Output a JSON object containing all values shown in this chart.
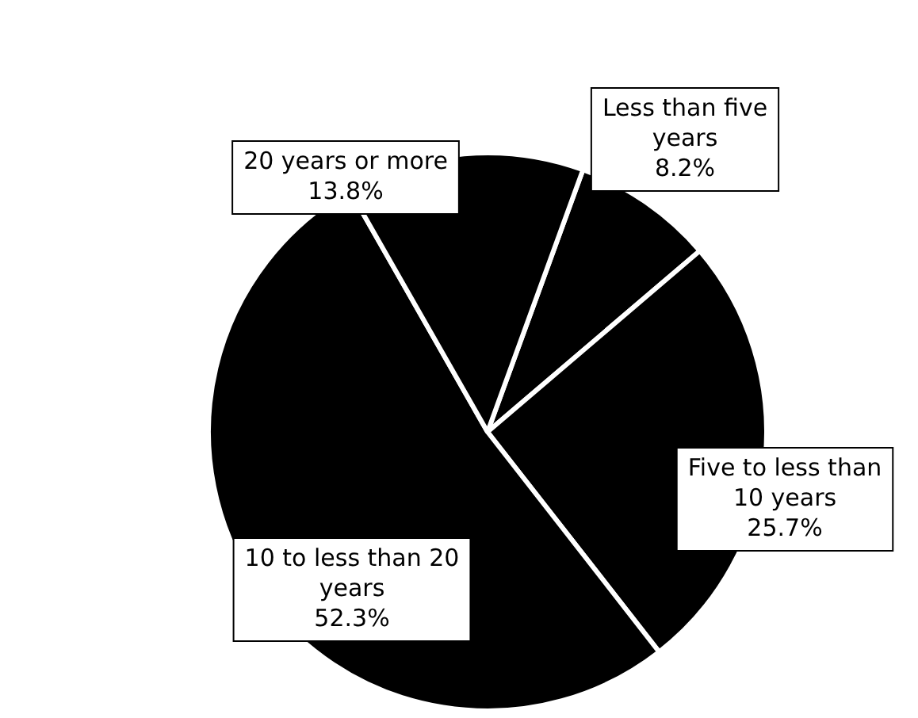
{
  "chart_data": {
    "type": "pie",
    "categories": [
      "Less than five years",
      "Five to less than 10 years",
      "10 to less than 20 years",
      "20 years or more"
    ],
    "values": [
      8.2,
      25.7,
      52.3,
      13.8
    ],
    "colors": [
      "#000000",
      "#000000",
      "#000000",
      "#000000"
    ],
    "value_labels": [
      "8.2%",
      "25.7%",
      "52.3%",
      "13.8%"
    ],
    "legend": false
  }
}
